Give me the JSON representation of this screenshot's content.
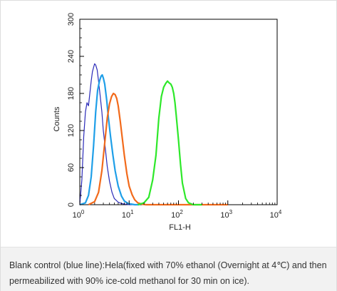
{
  "chart_data": {
    "type": "line",
    "xlabel": "FL1-H",
    "ylabel": "Counts",
    "x_scale": "log",
    "xlim": [
      1,
      10000
    ],
    "ylim": [
      0,
      300
    ],
    "x_ticks": [
      {
        "value": 1,
        "base": "10",
        "exp": "0"
      },
      {
        "value": 10,
        "base": "10",
        "exp": "1"
      },
      {
        "value": 100,
        "base": "10",
        "exp": "2"
      },
      {
        "value": 1000,
        "base": "10",
        "exp": "3"
      },
      {
        "value": 10000,
        "base": "10",
        "exp": "4"
      }
    ],
    "y_ticks": [
      0,
      60,
      120,
      180,
      240,
      300
    ],
    "grid": false,
    "series": [
      {
        "color": "#2a2ab8",
        "x": [
          1.0,
          1.1,
          1.2,
          1.3,
          1.4,
          1.5,
          1.6,
          1.7,
          1.8,
          1.9,
          2.0,
          2.1,
          2.25,
          2.4,
          2.6,
          2.8,
          3.0,
          3.3,
          3.6,
          4.0,
          4.5,
          5.0,
          6.0,
          7.0,
          8.0,
          10.0,
          12.0,
          15.0
        ],
        "y": [
          0,
          40,
          110,
          150,
          165,
          160,
          180,
          200,
          215,
          222,
          228,
          226,
          218,
          200,
          175,
          150,
          120,
          90,
          62,
          38,
          20,
          10,
          4,
          2,
          1,
          0,
          0,
          0
        ]
      },
      {
        "color": "#1f9fe8",
        "x": [
          1.0,
          1.3,
          1.5,
          1.7,
          1.9,
          2.1,
          2.3,
          2.5,
          2.7,
          2.85,
          3.0,
          3.2,
          3.5,
          3.8,
          4.2,
          4.7,
          5.2,
          6.0,
          7.0,
          8.0,
          9.5,
          11.0,
          13.0,
          16.0
        ],
        "y": [
          0,
          3,
          15,
          45,
          95,
          150,
          185,
          200,
          208,
          210,
          205,
          195,
          170,
          140,
          110,
          80,
          55,
          30,
          14,
          6,
          2,
          1,
          0,
          0
        ]
      },
      {
        "color": "#f26a1b",
        "x": [
          1.5,
          2.0,
          2.4,
          2.8,
          3.2,
          3.6,
          4.0,
          4.4,
          4.8,
          5.2,
          5.6,
          6.0,
          6.6,
          7.2,
          8.0,
          9.0,
          10.0,
          11.5,
          13.0,
          15.0,
          18.0,
          22.0,
          30.0,
          50.0,
          100.0,
          1000.0
        ],
        "y": [
          0,
          5,
          20,
          55,
          100,
          140,
          163,
          175,
          180,
          178,
          172,
          160,
          135,
          110,
          80,
          50,
          30,
          16,
          8,
          3,
          1,
          0,
          0,
          0,
          0,
          0
        ]
      },
      {
        "color": "#2ee82a",
        "x": [
          15.0,
          20.0,
          25.0,
          30.0,
          35.0,
          40.0,
          45.0,
          50.0,
          55.0,
          60.0,
          65.0,
          70.0,
          75.0,
          80.0,
          85.0,
          90.0,
          100.0,
          110.0,
          120.0,
          140.0,
          160.0,
          200.0,
          300.0
        ],
        "y": [
          0,
          3,
          12,
          40,
          80,
          140,
          175,
          190,
          196,
          200,
          197,
          195,
          190,
          180,
          165,
          145,
          105,
          65,
          35,
          10,
          3,
          0,
          0
        ]
      }
    ]
  },
  "caption": {
    "text": "Blank control (blue line):Hela(fixed with 70% ethanol (Overnight at 4℃) and then permeabilized with 90% ice-cold methanol for 30 min on ice)."
  }
}
